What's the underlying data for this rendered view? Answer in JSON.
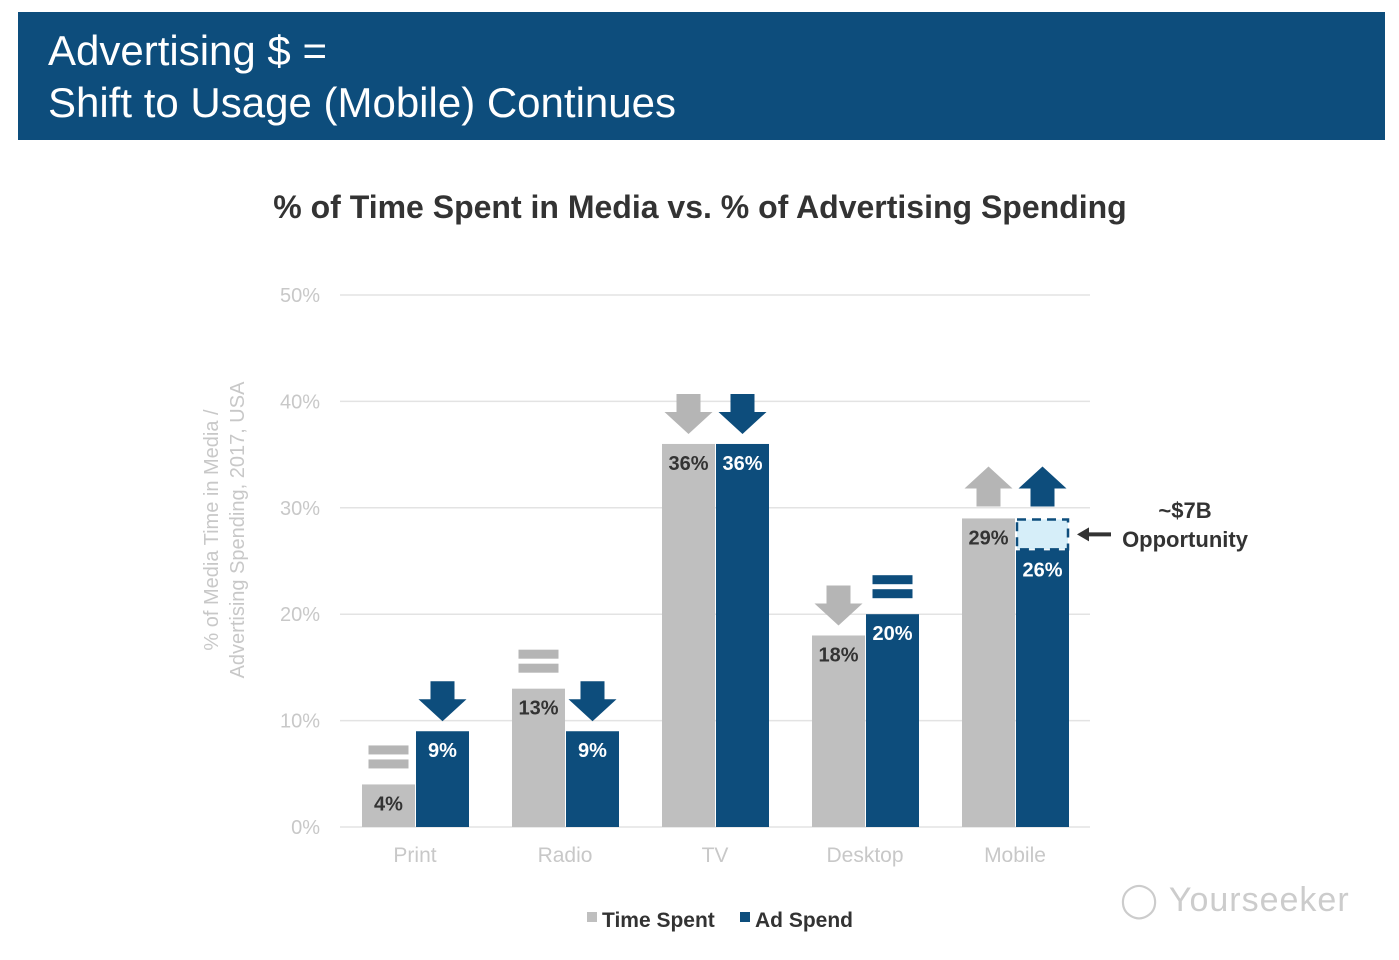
{
  "header": {
    "title_line1": "Advertising $ =",
    "title_line2": "Shift to Usage (Mobile) Continues"
  },
  "watermark": "Yourseeker",
  "chart_data": {
    "type": "bar",
    "title": "% of Time Spent in Media vs. % of Advertising Spending",
    "ylabel_line1": "% of Media Time in Media /",
    "ylabel_line2": "Advertising Spending, 2017, USA",
    "ylim": [
      0,
      50
    ],
    "yticks": [
      "0%",
      "10%",
      "20%",
      "30%",
      "40%",
      "50%"
    ],
    "grid": true,
    "legend_position": "bottom",
    "categories": [
      "Print",
      "Radio",
      "TV",
      "Desktop",
      "Mobile"
    ],
    "series": [
      {
        "name": "Time Spent",
        "color": "#bfbfbf",
        "values": [
          4,
          13,
          36,
          18,
          29
        ],
        "labels": [
          "4%",
          "13%",
          "36%",
          "18%",
          "29%"
        ],
        "trend": [
          "equal",
          "equal",
          "down",
          "down",
          "up"
        ]
      },
      {
        "name": "Ad Spend",
        "color": "#0d4d7c",
        "values": [
          9,
          9,
          36,
          20,
          26
        ],
        "labels": [
          "9%",
          "9%",
          "36%",
          "20%",
          "26%"
        ],
        "trend": [
          "down",
          "down",
          "down",
          "equal",
          "up"
        ]
      }
    ],
    "annotation": {
      "line1": "~$7B",
      "line2": "Opportunity",
      "gap_color": "#d6eef9"
    }
  }
}
